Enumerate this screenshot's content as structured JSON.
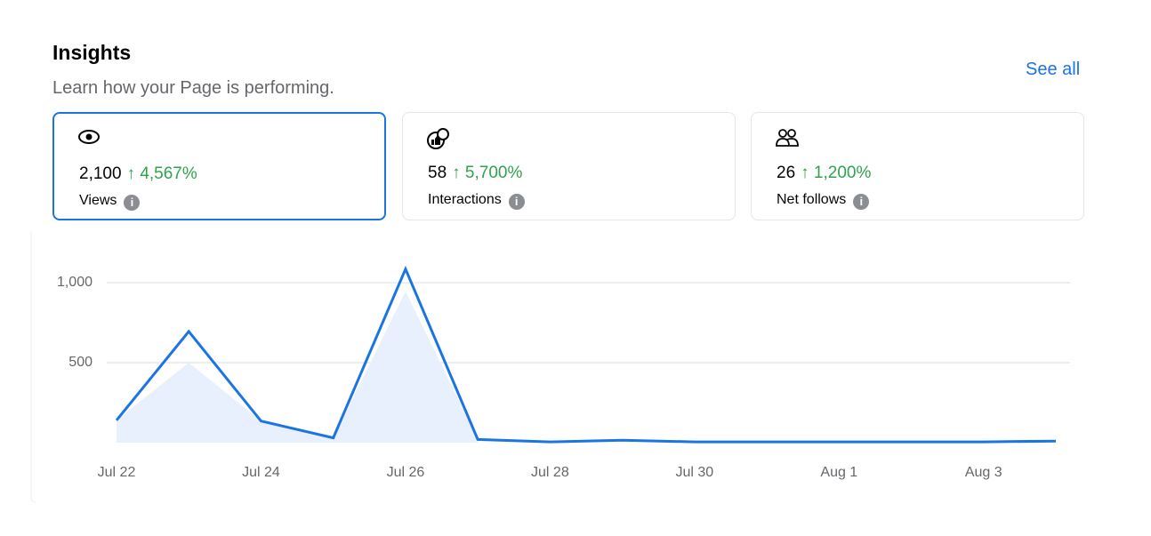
{
  "header": {
    "title": "Insights",
    "subtitle": "Learn how your Page is performing.",
    "link": "See all"
  },
  "cards": [
    {
      "value": "2,100",
      "change": "4,567%",
      "label": "Views"
    },
    {
      "value": "58",
      "change": "5,700%",
      "label": "Interactions"
    },
    {
      "value": "26",
      "change": "1,200%",
      "label": "Net follows"
    }
  ],
  "chart_data": {
    "type": "line",
    "categories": [
      "Jul 22",
      null,
      "Jul 24",
      null,
      "Jul 26",
      null,
      "Jul 28",
      null,
      "Jul 30",
      null,
      "Aug 1",
      null,
      "Aug 3",
      null
    ],
    "series": [
      {
        "color": "#e7f0fc",
        "fill": true,
        "values": [
          140,
          500,
          135,
          30,
          945,
          20,
          null,
          null,
          null,
          null,
          null,
          null,
          null,
          null
        ]
      },
      {
        "color": "#1b74e4",
        "fill": false,
        "values": [
          140,
          695,
          135,
          30,
          1085,
          20,
          5,
          15,
          5,
          5,
          5,
          5,
          5,
          10
        ]
      }
    ],
    "ylim": [
      0,
      1100
    ],
    "yticks": [
      500,
      {
        "value": 1000,
        "label": "1,000"
      }
    ],
    "grid": true
  }
}
